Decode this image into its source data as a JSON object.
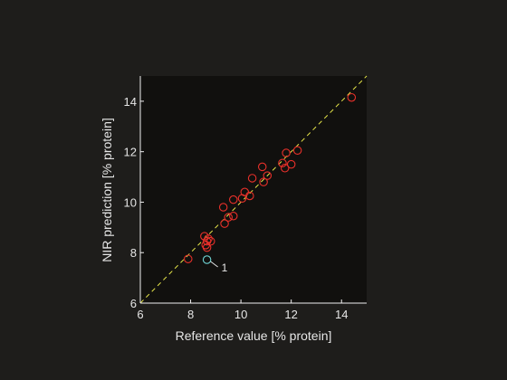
{
  "chart_data": {
    "type": "scatter",
    "title": "",
    "xlabel": "Reference value [% protein]",
    "ylabel": "NIR prediction [% protein]",
    "xlim": [
      6,
      15
    ],
    "ylim": [
      6,
      15
    ],
    "xticks": [
      6,
      8,
      10,
      12,
      14
    ],
    "yticks": [
      6,
      8,
      10,
      12,
      14
    ],
    "grid": false,
    "reference_line": {
      "style": "dashed",
      "color": "#e8e84a",
      "from": [
        6,
        6
      ],
      "to": [
        15,
        15
      ]
    },
    "series": [
      {
        "color": "#e8302a",
        "points": [
          [
            7.9,
            7.75
          ],
          [
            8.55,
            8.65
          ],
          [
            8.65,
            8.45
          ],
          [
            8.6,
            8.3
          ],
          [
            8.7,
            8.55
          ],
          [
            8.8,
            8.45
          ],
          [
            8.65,
            8.2
          ],
          [
            9.3,
            9.8
          ],
          [
            9.35,
            9.15
          ],
          [
            9.5,
            9.4
          ],
          [
            9.7,
            9.45
          ],
          [
            9.7,
            10.1
          ],
          [
            10.05,
            10.15
          ],
          [
            10.15,
            10.4
          ],
          [
            10.35,
            10.25
          ],
          [
            10.45,
            10.95
          ],
          [
            10.85,
            11.4
          ],
          [
            10.9,
            10.8
          ],
          [
            11.05,
            11.05
          ],
          [
            11.65,
            11.55
          ],
          [
            11.75,
            11.35
          ],
          [
            11.8,
            11.95
          ],
          [
            12.0,
            11.5
          ],
          [
            12.25,
            12.05
          ],
          [
            14.4,
            14.15
          ]
        ]
      },
      {
        "color": "#6fd4d4",
        "points": [
          [
            8.65,
            7.72
          ]
        ]
      }
    ],
    "annotations": [
      {
        "text": "1",
        "x": 8.65,
        "y": 7.72,
        "color": "#e6e6e6"
      }
    ]
  }
}
